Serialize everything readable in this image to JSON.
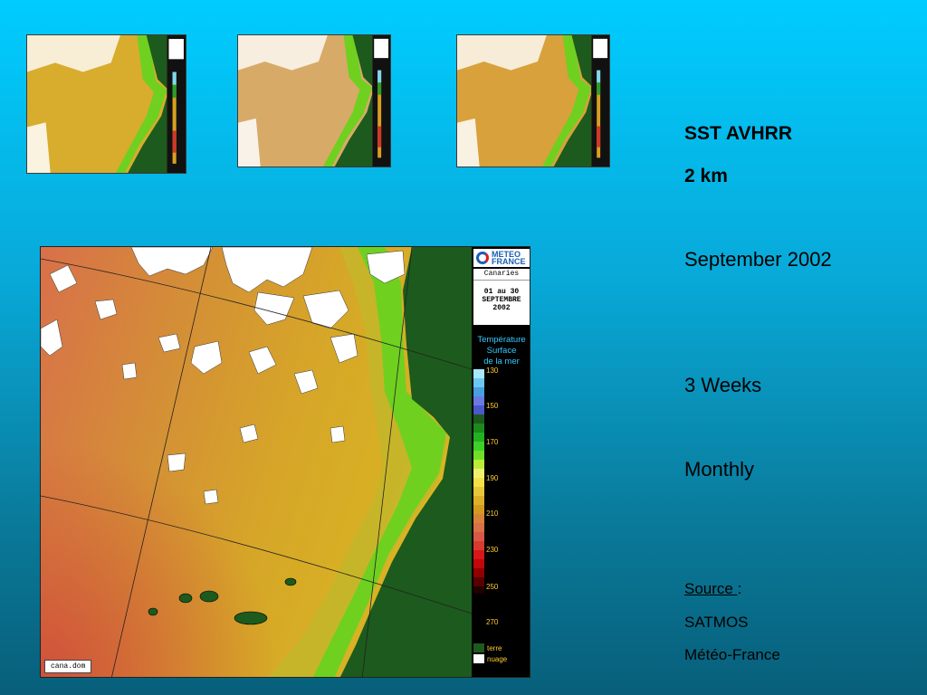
{
  "side": {
    "title_line1": "SST AVHRR",
    "title_line2": "2 km",
    "period": "September 2002",
    "duration": "3 Weeks",
    "frequency": "Monthly",
    "source_label": "Source ",
    "source_colon": ":",
    "source_line1": "SATMOS",
    "source_line2": "Météo-France"
  },
  "map": {
    "logo_text_1": "METEO",
    "logo_text_2": "FRANCE",
    "region": "Canaries",
    "date_line1": "01 au 30",
    "date_line2": "SEPTEMBRE",
    "date_line3": "2002",
    "legend_title_1": "Température",
    "legend_title_2": "Surface",
    "legend_title_3": "de la mer",
    "ticks": [
      "130",
      "150",
      "170",
      "190",
      "210",
      "230",
      "250",
      "270"
    ],
    "cat_land": "terre",
    "cat_cloud": "nuage",
    "file_name": "cana.dom"
  },
  "colors": {
    "land": "#1d5a1d",
    "cloud": "#ffffff",
    "sst_warm": "#d4a020",
    "sst_hot": "#d86040",
    "coast_green": "#6fd020"
  }
}
